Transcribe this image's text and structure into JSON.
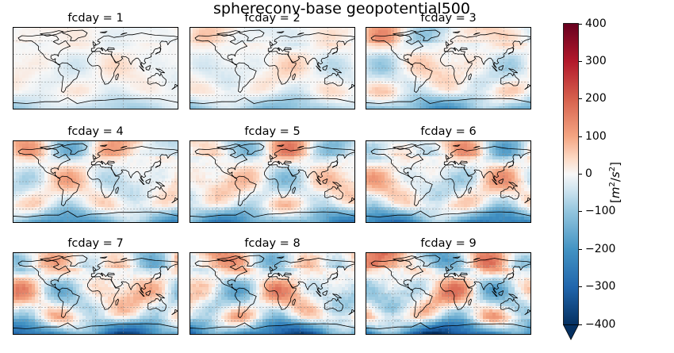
{
  "title": "sphereconv-base geopotential500",
  "colorbar": {
    "label": "[m²/s²]",
    "ticks": [
      "400",
      "300",
      "200",
      "100",
      "0",
      "−100",
      "−200",
      "−300",
      "−400"
    ],
    "range": [
      -400,
      400
    ],
    "colormap": "RdBu_r",
    "extend": "min",
    "colors": {
      "max": "#67001f",
      "mid": "#f7f7f7",
      "min": "#053061"
    }
  },
  "panels": [
    {
      "label": "fcday = 1",
      "intensity": 0.2
    },
    {
      "label": "fcday = 2",
      "intensity": 0.3
    },
    {
      "label": "fcday = 3",
      "intensity": 0.45
    },
    {
      "label": "fcday = 4",
      "intensity": 0.5
    },
    {
      "label": "fcday = 5",
      "intensity": 0.55
    },
    {
      "label": "fcday = 6",
      "intensity": 0.62
    },
    {
      "label": "fcday = 7",
      "intensity": 0.75
    },
    {
      "label": "fcday = 8",
      "intensity": 0.82
    },
    {
      "label": "fcday = 9",
      "intensity": 0.9
    }
  ]
}
